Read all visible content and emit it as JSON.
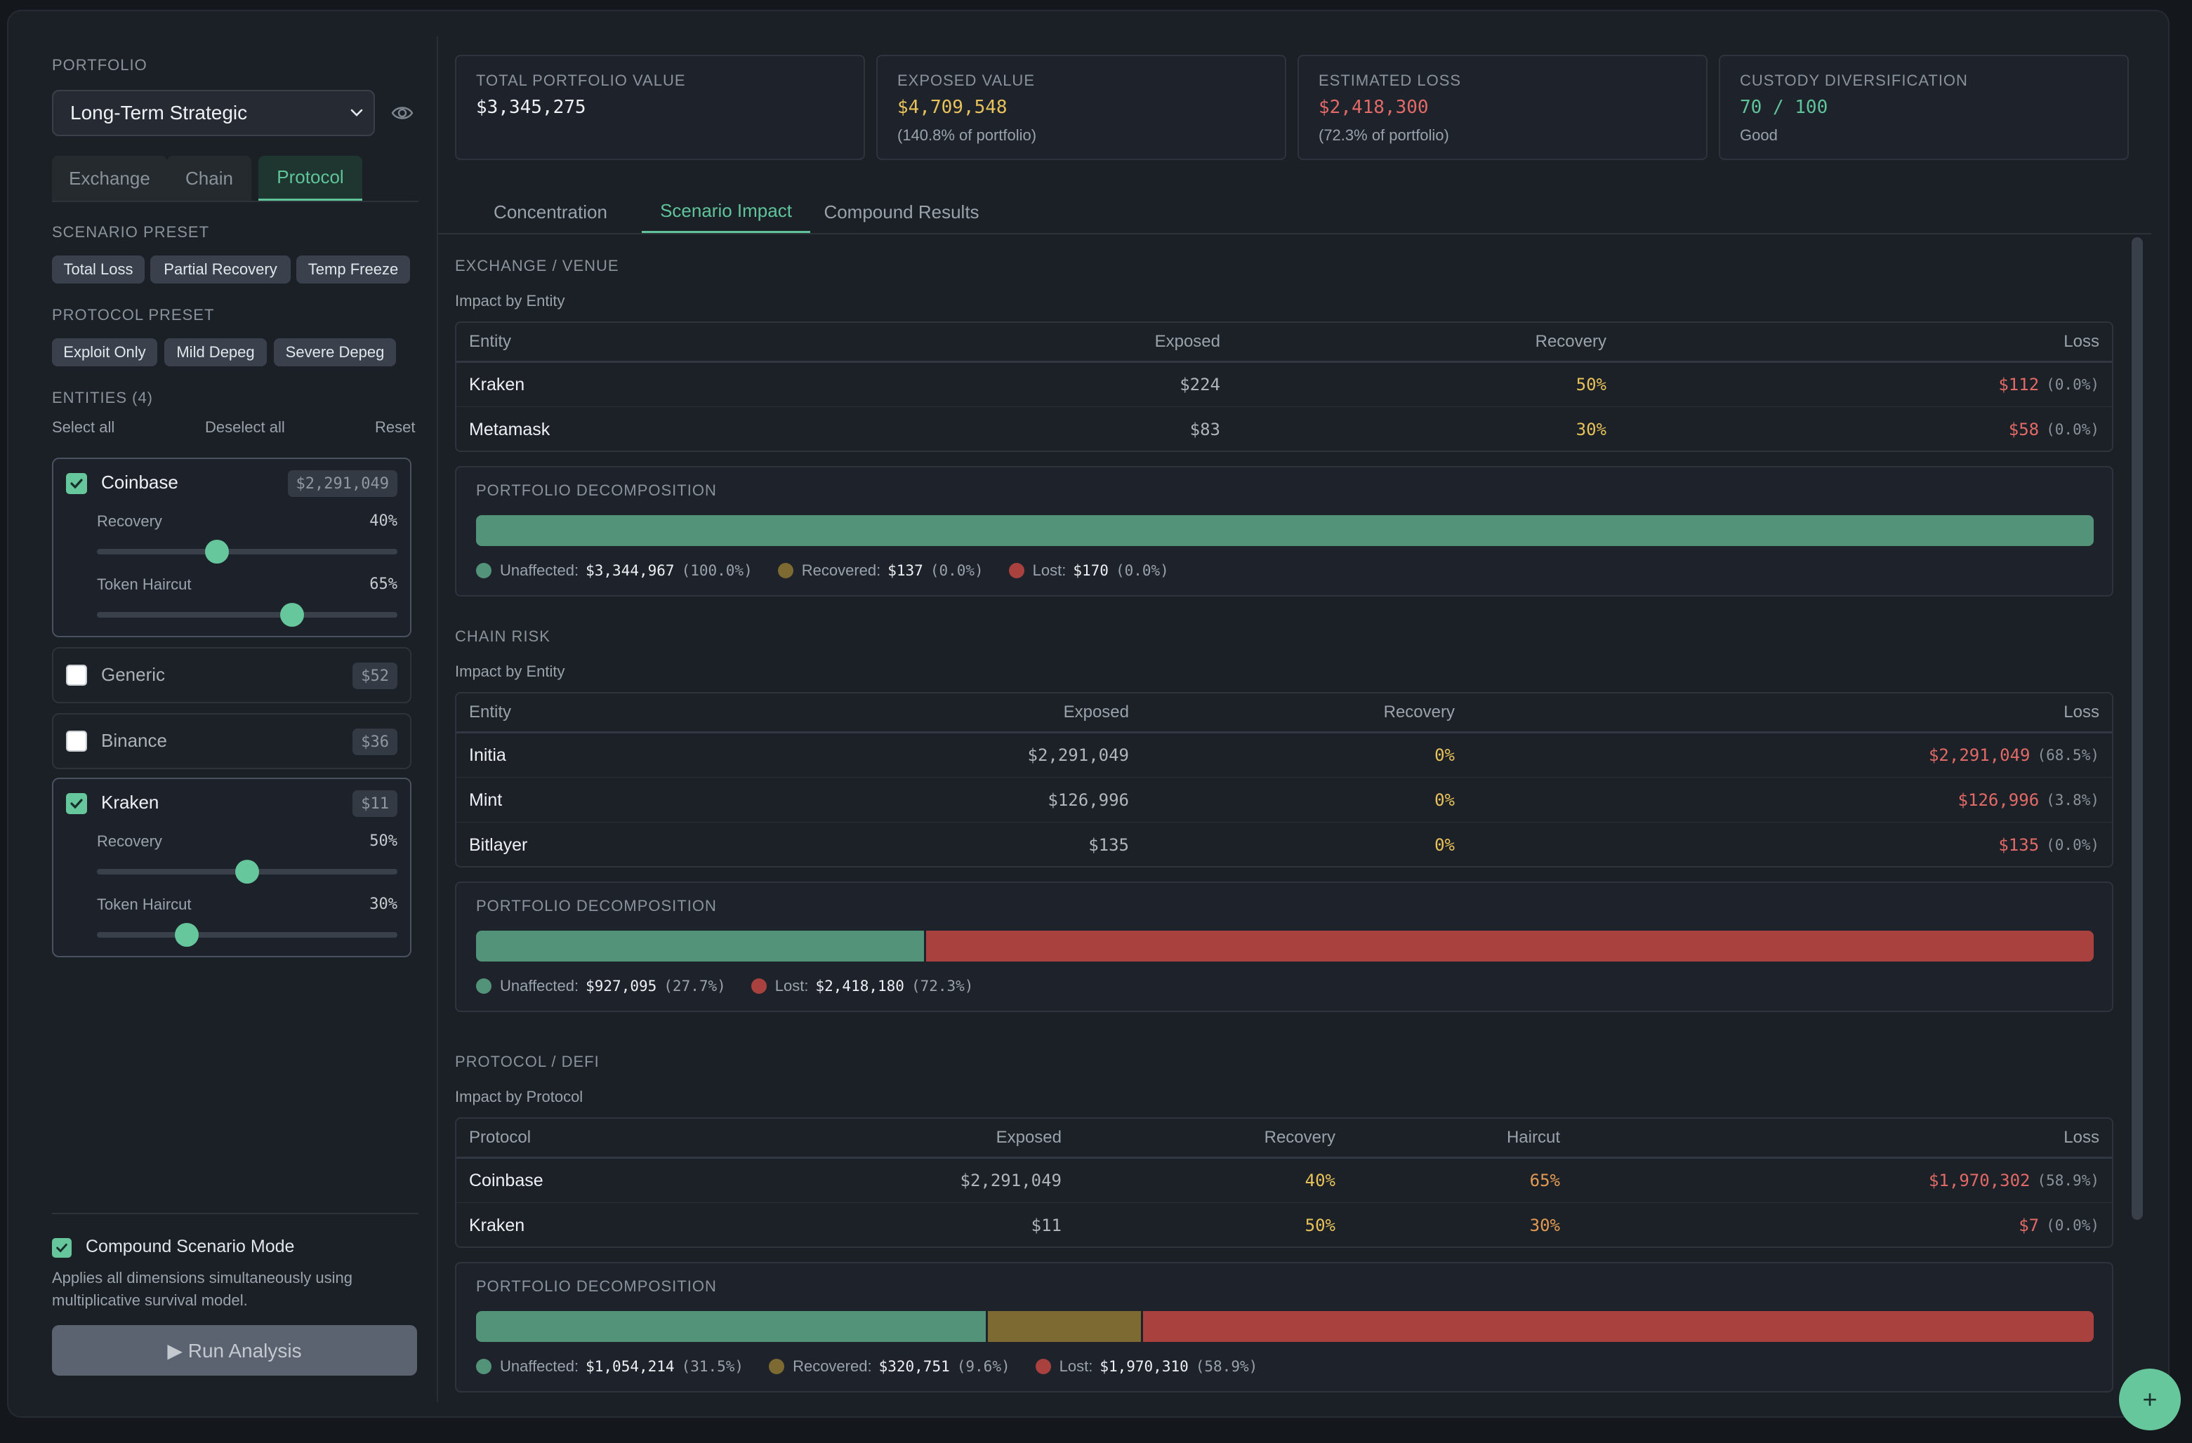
{
  "sidebar": {
    "portfolio_label": "PORTFOLIO",
    "portfolio_selected": "Long-Term Strategic",
    "dim_tabs": [
      "Exchange",
      "Chain",
      "Protocol"
    ],
    "dim_active": "Protocol",
    "scenario_preset_label": "SCENARIO PRESET",
    "scenario_presets": [
      "Total Loss",
      "Partial Recovery",
      "Temp Freeze"
    ],
    "protocol_preset_label": "PROTOCOL PRESET",
    "protocol_presets": [
      "Exploit Only",
      "Mild Depeg",
      "Severe Depeg"
    ],
    "entities_label": "ENTITIES (4)",
    "select_all": "Select all",
    "deselect_all": "Deselect all",
    "reset": "Reset",
    "entities": [
      {
        "name": "Coinbase",
        "value": "$2,291,049",
        "checked": true,
        "recovery_label": "Recovery",
        "recovery": "40%",
        "recovery_frac": 0.4,
        "haircut_label": "Token Haircut",
        "haircut": "65%",
        "haircut_frac": 0.65
      },
      {
        "name": "Generic",
        "value": "$52",
        "checked": false
      },
      {
        "name": "Binance",
        "value": "$36",
        "checked": false
      },
      {
        "name": "Kraken",
        "value": "$11",
        "checked": true,
        "recovery_label": "Recovery",
        "recovery": "50%",
        "recovery_frac": 0.5,
        "haircut_label": "Token Haircut",
        "haircut": "30%",
        "haircut_frac": 0.3
      }
    ],
    "compound_label": "Compound Scenario Mode",
    "compound_checked": true,
    "compound_desc_1": "Applies all dimensions simultaneously using",
    "compound_desc_2": "multiplicative survival model.",
    "run_button": "▶ Run Analysis"
  },
  "summary": [
    {
      "label": "TOTAL PORTFOLIO VALUE",
      "value": "$3,345,275",
      "sub": "",
      "color": "#eef1f4"
    },
    {
      "label": "EXPOSED VALUE",
      "value": "$4,709,548",
      "sub": "(140.8% of portfolio)",
      "color": "#e8c25a"
    },
    {
      "label": "ESTIMATED LOSS",
      "value": "$2,418,300",
      "sub": "(72.3% of portfolio)",
      "color": "#e26a66"
    },
    {
      "label": "CUSTODY DIVERSIFICATION",
      "value": "70 / 100",
      "sub": "Good",
      "color": "#5fc49a"
    }
  ],
  "tabs": [
    "Concentration",
    "Scenario Impact",
    "Compound Results"
  ],
  "active_tab": "Scenario Impact",
  "exchange": {
    "title": "EXCHANGE / VENUE",
    "sub": "Impact by Entity",
    "headers": [
      "Entity",
      "Exposed",
      "Recovery",
      "Loss"
    ],
    "rows": [
      {
        "entity": "Kraken",
        "exposed": "$224",
        "recovery": "50%",
        "loss": "$112",
        "loss_pct": "(0.0%)"
      },
      {
        "entity": "Metamask",
        "exposed": "$83",
        "recovery": "30%",
        "loss": "$58",
        "loss_pct": "(0.0%)"
      }
    ],
    "decomp": {
      "title": "PORTFOLIO DECOMPOSITION",
      "segments": [
        {
          "kind": "g",
          "pct": 100.0
        }
      ],
      "legend": [
        {
          "label": "Unaffected:",
          "amount": "$3,344,967",
          "pct": "(100.0%)",
          "color": "#53937a"
        },
        {
          "label": "Recovered:",
          "amount": "$137",
          "pct": "(0.0%)",
          "color": "#7c6a32"
        },
        {
          "label": "Lost:",
          "amount": "$170",
          "pct": "(0.0%)",
          "color": "#a9413f"
        }
      ]
    }
  },
  "chain": {
    "title": "CHAIN RISK",
    "sub": "Impact by Entity",
    "headers": [
      "Entity",
      "Exposed",
      "Recovery",
      "Loss"
    ],
    "rows": [
      {
        "entity": "Initia",
        "exposed": "$2,291,049",
        "recovery": "0%",
        "loss": "$2,291,049",
        "loss_pct": "(68.5%)"
      },
      {
        "entity": "Mint",
        "exposed": "$126,996",
        "recovery": "0%",
        "loss": "$126,996",
        "loss_pct": "(3.8%)"
      },
      {
        "entity": "Bitlayer",
        "exposed": "$135",
        "recovery": "0%",
        "loss": "$135",
        "loss_pct": "(0.0%)"
      }
    ],
    "decomp": {
      "title": "PORTFOLIO DECOMPOSITION",
      "segments": [
        {
          "kind": "g",
          "pct": 27.7
        },
        {
          "kind": "r",
          "pct": 72.3
        }
      ],
      "legend": [
        {
          "label": "Unaffected:",
          "amount": "$927,095",
          "pct": "(27.7%)",
          "color": "#53937a"
        },
        {
          "label": "Lost:",
          "amount": "$2,418,180",
          "pct": "(72.3%)",
          "color": "#a9413f"
        }
      ]
    }
  },
  "protocol": {
    "title": "PROTOCOL / DEFI",
    "sub": "Impact by Protocol",
    "headers": [
      "Protocol",
      "Exposed",
      "Recovery",
      "Haircut",
      "Loss"
    ],
    "rows": [
      {
        "entity": "Coinbase",
        "exposed": "$2,291,049",
        "recovery": "40%",
        "haircut": "65%",
        "loss": "$1,970,302",
        "loss_pct": "(58.9%)"
      },
      {
        "entity": "Kraken",
        "exposed": "$11",
        "recovery": "50%",
        "haircut": "30%",
        "loss": "$7",
        "loss_pct": "(0.0%)"
      }
    ],
    "decomp": {
      "title": "PORTFOLIO DECOMPOSITION",
      "segments": [
        {
          "kind": "g",
          "pct": 31.5
        },
        {
          "kind": "y",
          "pct": 9.6
        },
        {
          "kind": "r",
          "pct": 58.9
        }
      ],
      "legend": [
        {
          "label": "Unaffected:",
          "amount": "$1,054,214",
          "pct": "(31.5%)",
          "color": "#53937a"
        },
        {
          "label": "Recovered:",
          "amount": "$320,751",
          "pct": "(9.6%)",
          "color": "#7c6a32"
        },
        {
          "label": "Lost:",
          "amount": "$1,970,310",
          "pct": "(58.9%)",
          "color": "#a9413f"
        }
      ]
    }
  },
  "fab_label": "+"
}
